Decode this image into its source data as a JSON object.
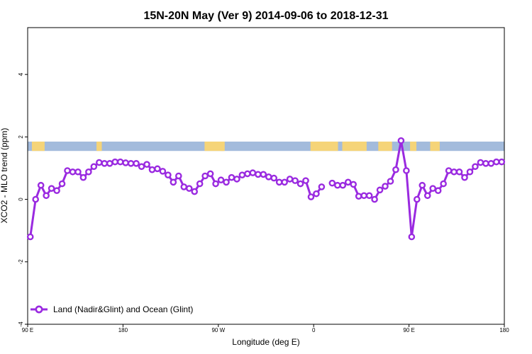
{
  "chart_data": {
    "type": "line",
    "title": "15N-20N May (Ver 9)   2014-09-06 to 2018-12-31",
    "xlabel": "Longitude (deg E)",
    "ylabel": "XCO2 - MLO trend (ppm)",
    "xlim": [
      90,
      540
    ],
    "ylim": [
      -4,
      5.5
    ],
    "x_ticks": [
      {
        "value": 90,
        "label": "90 E"
      },
      {
        "value": 180,
        "label": "180"
      },
      {
        "value": 270,
        "label": "90 W"
      },
      {
        "value": 360,
        "label": "0"
      },
      {
        "value": 450,
        "label": "90 E"
      },
      {
        "value": 540,
        "label": "180"
      }
    ],
    "y_ticks": [
      {
        "value": -4,
        "label": "-4"
      },
      {
        "value": -2,
        "label": "-2"
      },
      {
        "value": 0,
        "label": "0"
      },
      {
        "value": 2,
        "label": "2"
      },
      {
        "value": 4,
        "label": "4"
      }
    ],
    "grid": false,
    "legend_position": "bottom-left",
    "land_ocean_band": {
      "y_range": [
        1.55,
        1.85
      ],
      "ocean_color": "#a3bbdc",
      "land_color": "#f5d478",
      "land_x_ranges": [
        [
          94,
          106
        ],
        [
          155,
          160
        ],
        [
          257,
          275
        ],
        [
          272,
          276
        ],
        [
          357,
          383
        ],
        [
          387,
          410
        ],
        [
          421,
          434
        ],
        [
          451,
          457
        ],
        [
          470,
          479
        ]
      ]
    },
    "series": [
      {
        "name": "Land (Nadir&Glint) and Ocean (Glint)",
        "color": "#9a2ae0",
        "x": [
          92.5,
          97.5,
          102.5,
          107.5,
          112.5,
          117.5,
          122.5,
          127.5,
          132.5,
          137.5,
          142.5,
          147.5,
          152.5,
          157.5,
          162.5,
          167.5,
          172.5,
          177.5,
          182.5,
          187.5,
          192.5,
          197.5,
          202.5,
          207.5,
          212.5,
          217.5,
          222.5,
          227.5,
          232.5,
          237.5,
          242.5,
          247.5,
          252.5,
          257.5,
          262.5,
          267.5,
          272.5,
          277.5,
          282.5,
          287.5,
          292.5,
          297.5,
          302.5,
          307.5,
          312.5,
          317.5,
          322.5,
          327.5,
          332.5,
          337.5,
          342.5,
          347.5,
          352.5,
          357.5,
          362.5,
          367.5,
          null,
          377.5,
          382.5,
          387.5,
          392.5,
          397.5,
          402.5,
          407.5,
          412.5,
          417.5,
          422.5,
          427.5,
          432.5,
          437.5,
          442.5,
          447.5,
          452.5,
          457.5,
          462.5,
          467.5,
          472.5,
          477.5,
          482.5,
          487.5,
          492.5,
          497.5,
          502.5,
          507.5,
          512.5,
          517.5,
          522.5,
          527.5,
          532.5,
          537.5
        ],
        "values": [
          -1.2,
          0.0,
          0.45,
          0.12,
          0.35,
          0.28,
          0.5,
          0.92,
          0.88,
          0.88,
          0.7,
          0.88,
          1.05,
          1.18,
          1.15,
          1.15,
          1.2,
          1.2,
          1.17,
          1.15,
          1.15,
          1.05,
          1.12,
          0.95,
          0.98,
          0.9,
          0.78,
          0.55,
          0.75,
          0.4,
          0.35,
          0.25,
          0.5,
          0.75,
          0.82,
          0.5,
          0.62,
          0.55,
          0.7,
          0.65,
          0.78,
          0.82,
          0.85,
          0.8,
          0.8,
          0.72,
          0.68,
          0.55,
          0.55,
          0.65,
          0.6,
          0.5,
          0.6,
          0.08,
          0.18,
          0.4,
          null,
          0.52,
          0.45,
          0.45,
          0.55,
          0.48,
          0.1,
          0.12,
          0.12,
          0.0,
          0.3,
          0.42,
          0.58,
          0.95,
          1.88,
          0.92,
          -1.2,
          0.0,
          0.45,
          0.12,
          0.35,
          0.28,
          0.5,
          0.92,
          0.88,
          0.88,
          0.7,
          0.88,
          1.05,
          1.18,
          1.15,
          1.15,
          1.2,
          1.2
        ]
      }
    ]
  }
}
